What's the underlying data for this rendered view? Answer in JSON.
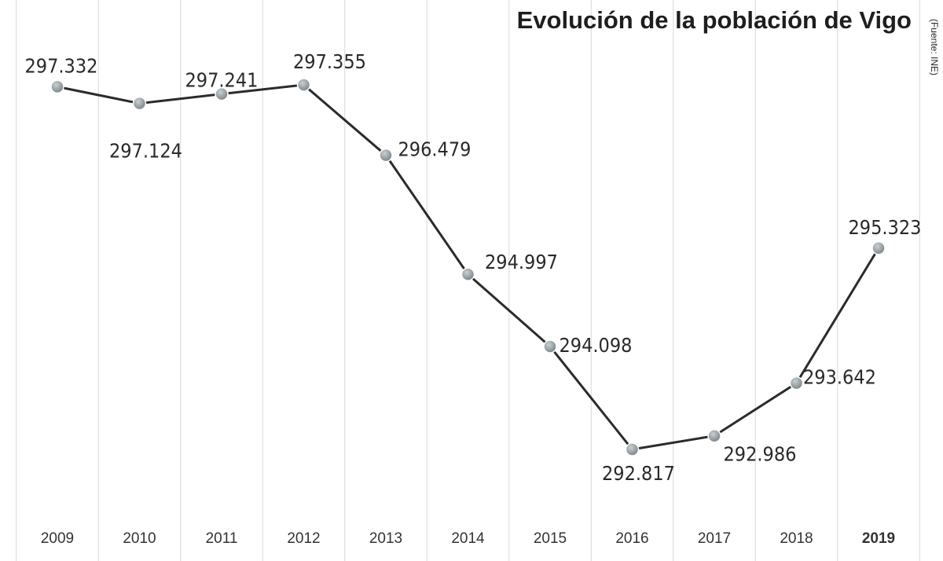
{
  "chart_data": {
    "type": "line",
    "title": "Evolución de la población de Vigo",
    "source": "(Fuente: INE)",
    "categories": [
      "2009",
      "2010",
      "2011",
      "2012",
      "2013",
      "2014",
      "2015",
      "2016",
      "2017",
      "2018",
      "2019"
    ],
    "values": [
      297332,
      297124,
      297241,
      297355,
      296479,
      294997,
      294098,
      292817,
      292986,
      293642,
      295323
    ],
    "value_labels": [
      "297.332",
      "297.124",
      "297.241",
      "297.355",
      "296.479",
      "294.997",
      "294.098",
      "292.817",
      "292.986",
      "293.642",
      "295.323"
    ],
    "color": "#2b2b2b",
    "marker_color": "#8a9296"
  }
}
